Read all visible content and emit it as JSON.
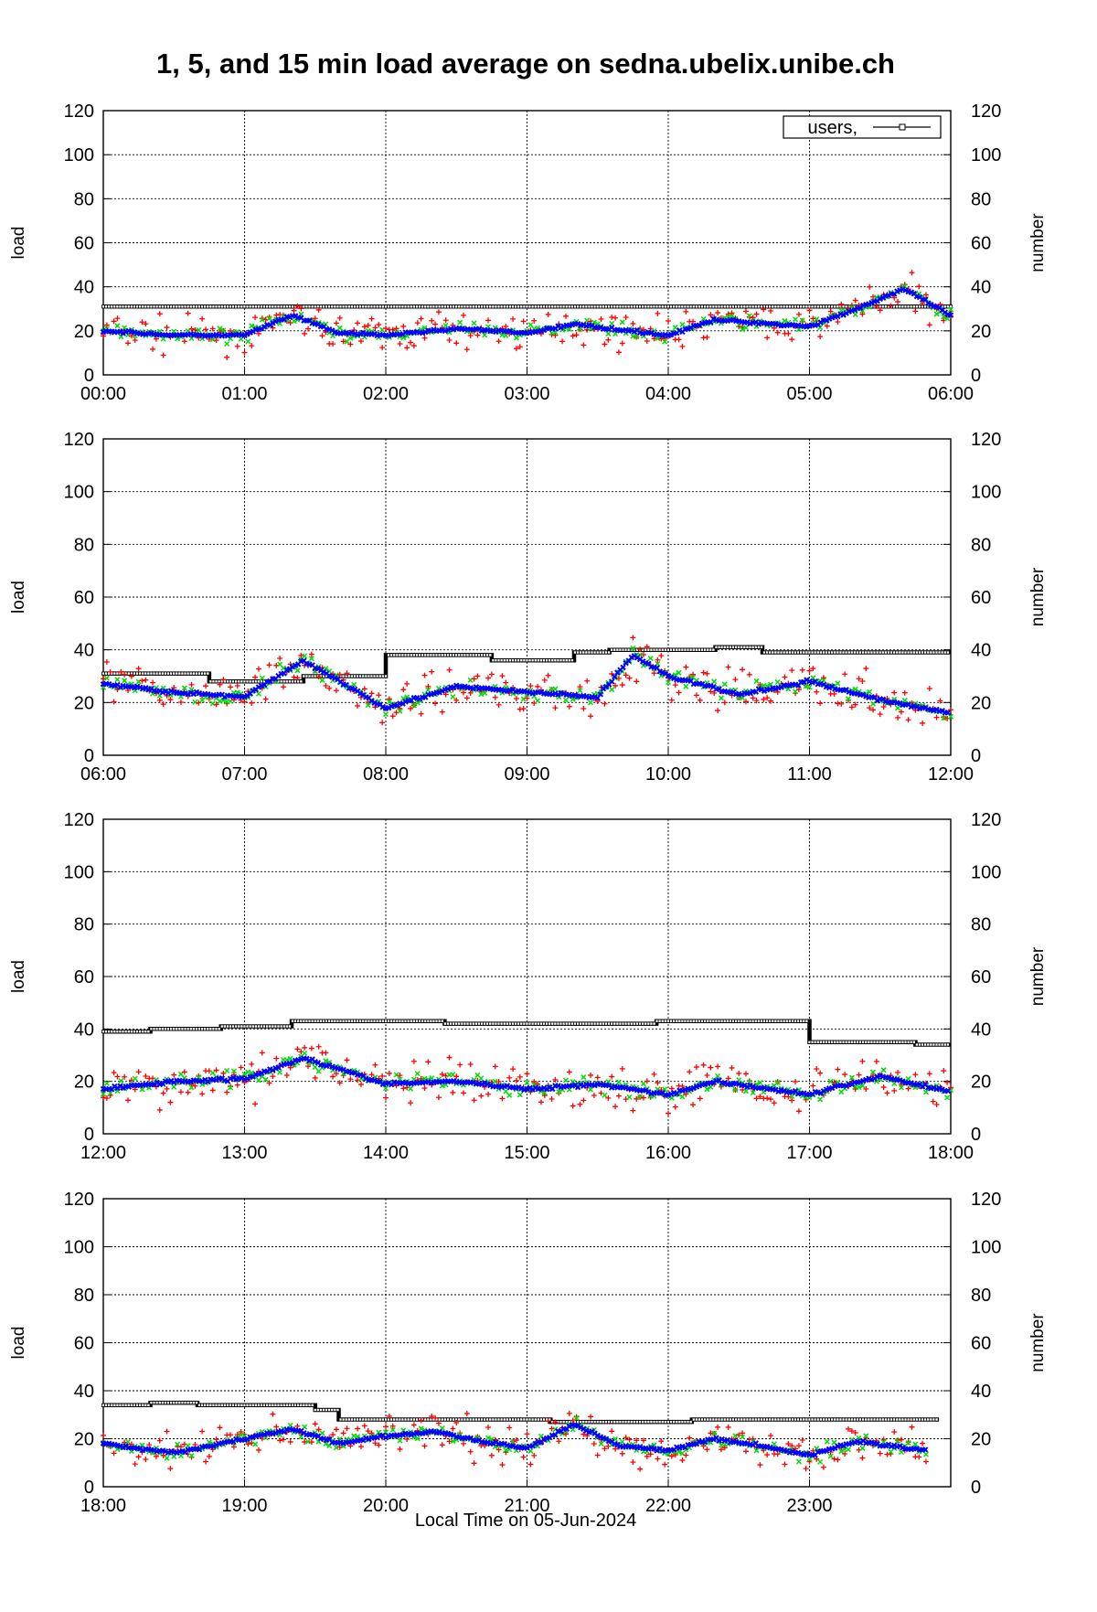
{
  "title": "1, 5, and 15 min load average on sedna.ubelix.unibe.ch",
  "xlabel": "Local Time on 05-Jun-2024",
  "ylabel_left": "load",
  "ylabel_right": "number",
  "legend": {
    "users": "users,"
  },
  "colors": {
    "load1": "#ff0000",
    "load5": "#00dd00",
    "load15": "#0000ff",
    "users": "#000000"
  },
  "chart_data": [
    {
      "type": "scatter",
      "ylim": [
        0,
        120
      ],
      "y2lim": [
        0,
        120
      ],
      "grid": true,
      "legend_position": "top-right",
      "x_ticks": [
        "00:00",
        "01:00",
        "02:00",
        "03:00",
        "04:00",
        "05:00",
        "06:00"
      ],
      "y_ticks": [
        "0",
        "20",
        "40",
        "60",
        "80",
        "100",
        "120"
      ],
      "series": [
        {
          "name": "users,",
          "x": [
            "00:00",
            "06:00"
          ],
          "values": [
            31,
            31
          ]
        }
      ],
      "load15_trend": {
        "x": [
          "00:00",
          "00:30",
          "01:00",
          "01:20",
          "01:40",
          "02:00",
          "02:30",
          "03:00",
          "03:20",
          "04:00",
          "04:20",
          "05:00",
          "05:20",
          "05:40",
          "06:00"
        ],
        "values": [
          20,
          18,
          18,
          27,
          19,
          18,
          21,
          19,
          23,
          18,
          25,
          22,
          30,
          39,
          27
        ]
      }
    },
    {
      "type": "scatter",
      "ylim": [
        0,
        120
      ],
      "y2lim": [
        0,
        120
      ],
      "grid": true,
      "x_ticks": [
        "06:00",
        "07:00",
        "08:00",
        "09:00",
        "10:00",
        "11:00",
        "12:00"
      ],
      "y_ticks": [
        "0",
        "20",
        "40",
        "60",
        "80",
        "100",
        "120"
      ],
      "series": [
        {
          "name": "users,",
          "x": [
            "06:00",
            "06:45",
            "06:45",
            "07:25",
            "07:25",
            "08:00",
            "08:00",
            "08:45",
            "08:45",
            "09:20",
            "09:20",
            "09:35",
            "09:35",
            "10:20",
            "10:20",
            "10:40",
            "10:40",
            "12:00"
          ],
          "values": [
            31,
            31,
            28,
            28,
            30,
            30,
            38,
            38,
            36,
            36,
            39,
            39,
            40,
            40,
            41,
            41,
            39,
            39
          ]
        }
      ],
      "load15_trend": {
        "x": [
          "06:00",
          "06:30",
          "07:00",
          "07:25",
          "08:00",
          "08:30",
          "09:00",
          "09:30",
          "09:45",
          "10:00",
          "10:30",
          "11:00",
          "11:30",
          "12:00"
        ],
        "values": [
          27,
          24,
          22,
          36,
          18,
          26,
          24,
          22,
          38,
          30,
          23,
          28,
          21,
          16
        ]
      }
    },
    {
      "type": "scatter",
      "ylim": [
        0,
        120
      ],
      "y2lim": [
        0,
        120
      ],
      "grid": true,
      "x_ticks": [
        "12:00",
        "13:00",
        "14:00",
        "15:00",
        "16:00",
        "17:00",
        "18:00"
      ],
      "y_ticks": [
        "0",
        "20",
        "40",
        "60",
        "80",
        "100",
        "120"
      ],
      "series": [
        {
          "name": "users,",
          "x": [
            "12:00",
            "12:20",
            "12:20",
            "12:50",
            "12:50",
            "13:20",
            "13:20",
            "14:25",
            "14:25",
            "15:55",
            "15:55",
            "17:00",
            "17:00",
            "17:45",
            "17:45",
            "18:00"
          ],
          "values": [
            39,
            39,
            40,
            40,
            41,
            41,
            43,
            43,
            42,
            42,
            43,
            43,
            35,
            35,
            34,
            34
          ]
        }
      ],
      "load15_trend": {
        "x": [
          "12:00",
          "12:30",
          "13:00",
          "13:25",
          "14:00",
          "14:30",
          "15:00",
          "15:30",
          "16:00",
          "16:20",
          "17:00",
          "17:30",
          "18:00"
        ],
        "values": [
          17,
          20,
          21,
          29,
          19,
          20,
          17,
          19,
          15,
          20,
          15,
          22,
          16
        ]
      }
    },
    {
      "type": "scatter",
      "ylim": [
        0,
        120
      ],
      "y2lim": [
        0,
        120
      ],
      "grid": true,
      "x_ticks": [
        "18:00",
        "19:00",
        "20:00",
        "21:00",
        "22:00",
        "23:00"
      ],
      "y_ticks": [
        "0",
        "20",
        "40",
        "60",
        "80",
        "100",
        "120"
      ],
      "series": [
        {
          "name": "users,",
          "x": [
            "18:00",
            "18:20",
            "18:20",
            "18:40",
            "18:40",
            "19:30",
            "19:30",
            "19:40",
            "19:40",
            "21:10",
            "21:10",
            "22:10",
            "22:10",
            "23:55"
          ],
          "values": [
            34,
            34,
            35,
            35,
            34,
            34,
            32,
            32,
            28,
            28,
            27,
            27,
            28,
            28
          ]
        }
      ],
      "load15_trend": {
        "x": [
          "18:00",
          "18:30",
          "19:00",
          "19:20",
          "19:40",
          "20:00",
          "20:20",
          "20:40",
          "21:00",
          "21:20",
          "21:40",
          "22:00",
          "22:20",
          "22:40",
          "23:00",
          "23:20",
          "23:50"
        ],
        "values": [
          18,
          14,
          20,
          24,
          18,
          21,
          23,
          19,
          16,
          26,
          17,
          15,
          20,
          17,
          13,
          19,
          15
        ]
      }
    }
  ]
}
